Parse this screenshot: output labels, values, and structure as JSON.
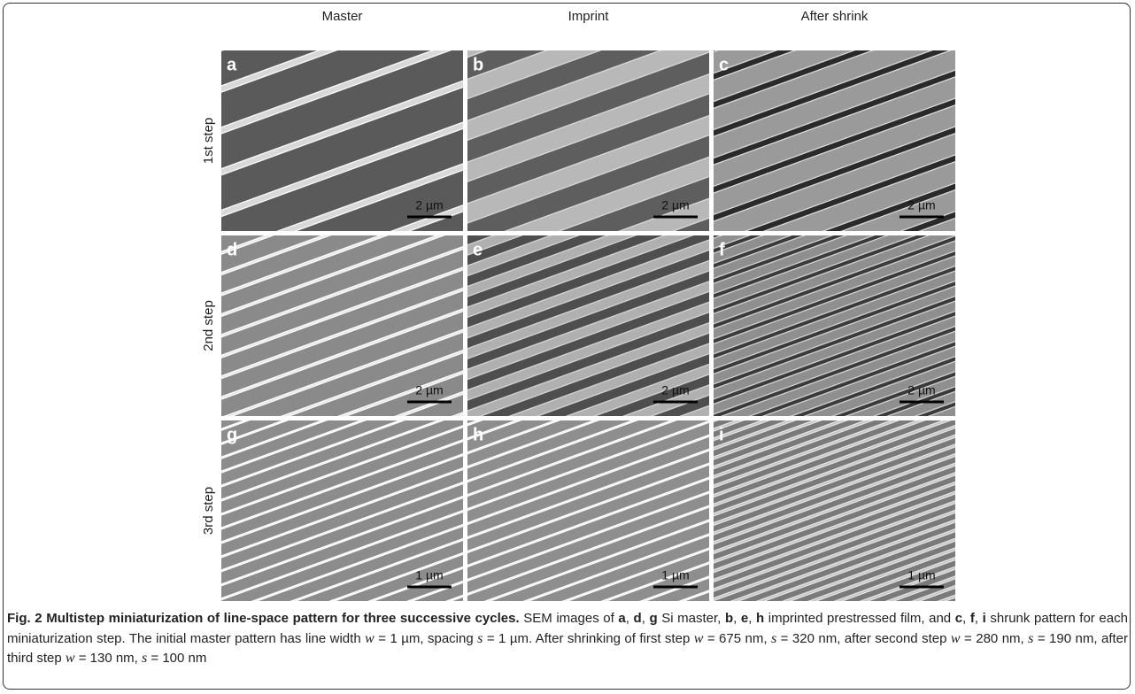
{
  "figure": {
    "column_headers": [
      "Master",
      "Imprint",
      "After shrink"
    ],
    "row_labels": [
      "1st step",
      "2nd step",
      "3rd step"
    ],
    "panels": [
      [
        {
          "letter": "a",
          "scale_bar": "2 µm"
        },
        {
          "letter": "b",
          "scale_bar": "2 µm"
        },
        {
          "letter": "c",
          "scale_bar": "2 µm"
        }
      ],
      [
        {
          "letter": "d",
          "scale_bar": "2 µm"
        },
        {
          "letter": "e",
          "scale_bar": "2 µm"
        },
        {
          "letter": "f",
          "scale_bar": "2 µm"
        }
      ],
      [
        {
          "letter": "g",
          "scale_bar": "1 µm"
        },
        {
          "letter": "h",
          "scale_bar": "1 µm"
        },
        {
          "letter": "i",
          "scale_bar": "1 µm"
        }
      ]
    ],
    "caption": {
      "runs": [
        "Fig. 2 Multistep miniaturization of line-space pattern for three successive cycles.",
        " SEM images of ",
        "a",
        ", ",
        "d",
        ", ",
        "g",
        " Si master, ",
        "b",
        ", ",
        "e",
        ", ",
        "h",
        " imprinted prestressed film, and ",
        "c",
        ", ",
        "f",
        ", ",
        "i",
        " shrunk pattern for each miniaturization step. The initial master pattern has line width ",
        "w",
        " = 1 µm, spacing ",
        "s",
        " = 1 µm. After shrinking of first step ",
        "w",
        " = 675 nm, ",
        "s",
        " = 320 nm, after second step ",
        "w",
        " = 280 nm, ",
        "s",
        " = 190 nm, after third step ",
        "w",
        " = 130 nm, ",
        "s",
        " = 100 nm"
      ]
    }
  }
}
